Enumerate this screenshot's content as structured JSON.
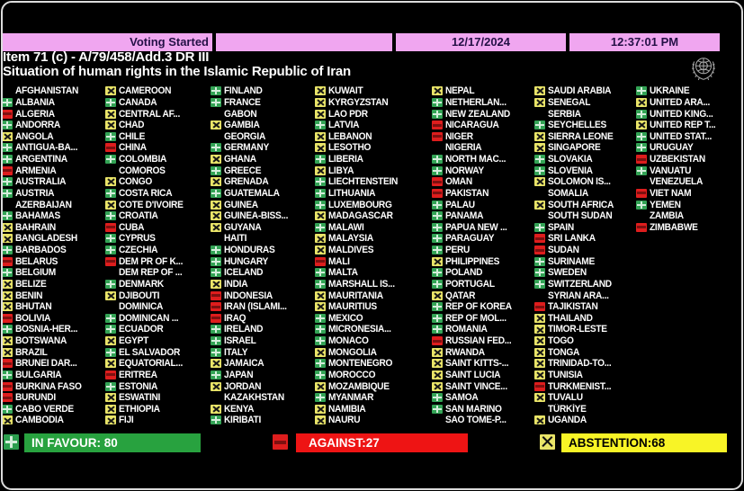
{
  "status_bar": {
    "voting_status": "Voting Started",
    "date": "12/17/2024",
    "time": "12:37:01 PM"
  },
  "header": {
    "item_line": "Item 71 (c) - A/79/458/Add.3 DR III",
    "subject_line": "Situation of human rights in the Islamic Republic of Iran"
  },
  "vote_legend": {
    "plus": "in favour",
    "minus": "against",
    "x": "abstention",
    "blank": "absent"
  },
  "board": {
    "columns": [
      [
        {
          "n": "AFGHANISTAN",
          "v": ""
        },
        {
          "n": "ALBANIA",
          "v": "+"
        },
        {
          "n": "ALGERIA",
          "v": "-"
        },
        {
          "n": "ANDORRA",
          "v": "+"
        },
        {
          "n": "ANGOLA",
          "v": "x"
        },
        {
          "n": "ANTIGUA-BA...",
          "v": "+"
        },
        {
          "n": "ARGENTINA",
          "v": "+"
        },
        {
          "n": "ARMENIA",
          "v": "-"
        },
        {
          "n": "AUSTRALIA",
          "v": "+"
        },
        {
          "n": "AUSTRIA",
          "v": "+"
        },
        {
          "n": "AZERBAIJAN",
          "v": ""
        },
        {
          "n": "BAHAMAS",
          "v": "+"
        },
        {
          "n": "BAHRAIN",
          "v": "x"
        },
        {
          "n": "BANGLADESH",
          "v": "x"
        },
        {
          "n": "BARBADOS",
          "v": "+"
        },
        {
          "n": "BELARUS",
          "v": "-"
        },
        {
          "n": "BELGIUM",
          "v": "+"
        },
        {
          "n": "BELIZE",
          "v": "x"
        },
        {
          "n": "BENIN",
          "v": "x"
        },
        {
          "n": "BHUTAN",
          "v": "x"
        },
        {
          "n": "BOLIVIA",
          "v": "-"
        },
        {
          "n": "BOSNIA-HER...",
          "v": "+"
        },
        {
          "n": "BOTSWANA",
          "v": "x"
        },
        {
          "n": "BRAZIL",
          "v": "x"
        },
        {
          "n": "BRUNEI DAR...",
          "v": "-"
        },
        {
          "n": "BULGARIA",
          "v": "+"
        },
        {
          "n": "BURKINA FASO",
          "v": "-"
        },
        {
          "n": "BURUNDI",
          "v": "-"
        },
        {
          "n": "CABO VERDE",
          "v": "+"
        },
        {
          "n": "CAMBODIA",
          "v": "x"
        }
      ],
      [
        {
          "n": "CAMEROON",
          "v": "x"
        },
        {
          "n": "CANADA",
          "v": "+"
        },
        {
          "n": "CENTRAL AF...",
          "v": "x"
        },
        {
          "n": "CHAD",
          "v": "x"
        },
        {
          "n": "CHILE",
          "v": "+"
        },
        {
          "n": "CHINA",
          "v": "-"
        },
        {
          "n": "COLOMBIA",
          "v": "+"
        },
        {
          "n": "COMOROS",
          "v": ""
        },
        {
          "n": "CONGO",
          "v": "x"
        },
        {
          "n": "COSTA RICA",
          "v": "+"
        },
        {
          "n": "COTE D'IVOIRE",
          "v": "x"
        },
        {
          "n": "CROATIA",
          "v": "+"
        },
        {
          "n": "CUBA",
          "v": "-"
        },
        {
          "n": "CYPRUS",
          "v": "+"
        },
        {
          "n": "CZECHIA",
          "v": "+"
        },
        {
          "n": "DEM PR OF K...",
          "v": "-"
        },
        {
          "n": "DEM REP OF ...",
          "v": ""
        },
        {
          "n": "DENMARK",
          "v": "+"
        },
        {
          "n": "DJIBOUTI",
          "v": "x"
        },
        {
          "n": "DOMINICA",
          "v": ""
        },
        {
          "n": "DOMINICAN ...",
          "v": "+"
        },
        {
          "n": "ECUADOR",
          "v": "+"
        },
        {
          "n": "EGYPT",
          "v": "x"
        },
        {
          "n": "EL SALVADOR",
          "v": "+"
        },
        {
          "n": "EQUATORIAL...",
          "v": "x"
        },
        {
          "n": "ERITREA",
          "v": "-"
        },
        {
          "n": "ESTONIA",
          "v": "+"
        },
        {
          "n": "ESWATINI",
          "v": "x"
        },
        {
          "n": "ETHIOPIA",
          "v": "x"
        },
        {
          "n": "FIJI",
          "v": "x"
        }
      ],
      [
        {
          "n": "FINLAND",
          "v": "+"
        },
        {
          "n": "FRANCE",
          "v": "+"
        },
        {
          "n": "GABON",
          "v": ""
        },
        {
          "n": "GAMBIA",
          "v": "x"
        },
        {
          "n": "GEORGIA",
          "v": ""
        },
        {
          "n": "GERMANY",
          "v": "+"
        },
        {
          "n": "GHANA",
          "v": "x"
        },
        {
          "n": "GREECE",
          "v": "+"
        },
        {
          "n": "GRENADA",
          "v": "x"
        },
        {
          "n": "GUATEMALA",
          "v": "+"
        },
        {
          "n": "GUINEA",
          "v": "x"
        },
        {
          "n": "GUINEA-BISS...",
          "v": "x"
        },
        {
          "n": "GUYANA",
          "v": "x"
        },
        {
          "n": "HAITI",
          "v": ""
        },
        {
          "n": "HONDURAS",
          "v": "+"
        },
        {
          "n": "HUNGARY",
          "v": "+"
        },
        {
          "n": "ICELAND",
          "v": "+"
        },
        {
          "n": "INDIA",
          "v": "x"
        },
        {
          "n": "INDONESIA",
          "v": "-"
        },
        {
          "n": "IRAN (ISLAMI...",
          "v": "-"
        },
        {
          "n": "IRAQ",
          "v": "-"
        },
        {
          "n": "IRELAND",
          "v": "+"
        },
        {
          "n": "ISRAEL",
          "v": "+"
        },
        {
          "n": "ITALY",
          "v": "+"
        },
        {
          "n": "JAMAICA",
          "v": "x"
        },
        {
          "n": "JAPAN",
          "v": "+"
        },
        {
          "n": "JORDAN",
          "v": "x"
        },
        {
          "n": "KAZAKHSTAN",
          "v": ""
        },
        {
          "n": "KENYA",
          "v": "x"
        },
        {
          "n": "KIRIBATI",
          "v": "+"
        }
      ],
      [
        {
          "n": "KUWAIT",
          "v": "x"
        },
        {
          "n": "KYRGYZSTAN",
          "v": "x"
        },
        {
          "n": "LAO PDR",
          "v": "x"
        },
        {
          "n": "LATVIA",
          "v": "+"
        },
        {
          "n": "LEBANON",
          "v": "x"
        },
        {
          "n": "LESOTHO",
          "v": "x"
        },
        {
          "n": "LIBERIA",
          "v": "+"
        },
        {
          "n": "LIBYA",
          "v": "x"
        },
        {
          "n": "LIECHTENSTEIN",
          "v": "+"
        },
        {
          "n": "LITHUANIA",
          "v": "+"
        },
        {
          "n": "LUXEMBOURG",
          "v": "+"
        },
        {
          "n": "MADAGASCAR",
          "v": "x"
        },
        {
          "n": "MALAWI",
          "v": "+"
        },
        {
          "n": "MALAYSIA",
          "v": "x"
        },
        {
          "n": "MALDIVES",
          "v": "x"
        },
        {
          "n": "MALI",
          "v": "-"
        },
        {
          "n": "MALTA",
          "v": "+"
        },
        {
          "n": "MARSHALL IS...",
          "v": "+"
        },
        {
          "n": "MAURITANIA",
          "v": "x"
        },
        {
          "n": "MAURITIUS",
          "v": "x"
        },
        {
          "n": "MEXICO",
          "v": "+"
        },
        {
          "n": "MICRONESIA...",
          "v": "+"
        },
        {
          "n": "MONACO",
          "v": "+"
        },
        {
          "n": "MONGOLIA",
          "v": "x"
        },
        {
          "n": "MONTENEGRO",
          "v": "+"
        },
        {
          "n": "MOROCCO",
          "v": "+"
        },
        {
          "n": "MOZAMBIQUE",
          "v": "x"
        },
        {
          "n": "MYANMAR",
          "v": "+"
        },
        {
          "n": "NAMIBIA",
          "v": "x"
        },
        {
          "n": "NAURU",
          "v": "x"
        }
      ],
      [
        {
          "n": "NEPAL",
          "v": "x"
        },
        {
          "n": "NETHERLAN...",
          "v": "+"
        },
        {
          "n": "NEW ZEALAND",
          "v": "+"
        },
        {
          "n": "NICARAGUA",
          "v": "-"
        },
        {
          "n": "NIGER",
          "v": "-"
        },
        {
          "n": "NIGERIA",
          "v": ""
        },
        {
          "n": "NORTH MAC...",
          "v": "+"
        },
        {
          "n": "NORWAY",
          "v": "+"
        },
        {
          "n": "OMAN",
          "v": "-"
        },
        {
          "n": "PAKISTAN",
          "v": "-"
        },
        {
          "n": "PALAU",
          "v": "+"
        },
        {
          "n": "PANAMA",
          "v": "+"
        },
        {
          "n": "PAPUA NEW ...",
          "v": "+"
        },
        {
          "n": "PARAGUAY",
          "v": "+"
        },
        {
          "n": "PERU",
          "v": "+"
        },
        {
          "n": "PHILIPPINES",
          "v": "x"
        },
        {
          "n": "POLAND",
          "v": "+"
        },
        {
          "n": "PORTUGAL",
          "v": "+"
        },
        {
          "n": "QATAR",
          "v": "x"
        },
        {
          "n": "REP OF KOREA",
          "v": "+"
        },
        {
          "n": "REP OF MOL...",
          "v": "+"
        },
        {
          "n": "ROMANIA",
          "v": "+"
        },
        {
          "n": "RUSSIAN FED...",
          "v": "-"
        },
        {
          "n": "RWANDA",
          "v": "x"
        },
        {
          "n": "SAINT KITTS-...",
          "v": "x"
        },
        {
          "n": "SAINT LUCIA",
          "v": "x"
        },
        {
          "n": "SAINT VINCE...",
          "v": "x"
        },
        {
          "n": "SAMOA",
          "v": "+"
        },
        {
          "n": "SAN MARINO",
          "v": "+"
        },
        {
          "n": "SAO TOME-P...",
          "v": ""
        }
      ],
      [
        {
          "n": "SAUDI ARABIA",
          "v": "x"
        },
        {
          "n": "SENEGAL",
          "v": "x"
        },
        {
          "n": "SERBIA",
          "v": ""
        },
        {
          "n": "SEYCHELLES",
          "v": "+"
        },
        {
          "n": "SIERRA LEONE",
          "v": "x"
        },
        {
          "n": "SINGAPORE",
          "v": "x"
        },
        {
          "n": "SLOVAKIA",
          "v": "+"
        },
        {
          "n": "SLOVENIA",
          "v": "+"
        },
        {
          "n": "SOLOMON IS...",
          "v": "x"
        },
        {
          "n": "SOMALIA",
          "v": ""
        },
        {
          "n": "SOUTH AFRICA",
          "v": "x"
        },
        {
          "n": "SOUTH SUDAN",
          "v": ""
        },
        {
          "n": "SPAIN",
          "v": "+"
        },
        {
          "n": "SRI LANKA",
          "v": "-"
        },
        {
          "n": "SUDAN",
          "v": "-"
        },
        {
          "n": "SURINAME",
          "v": "+"
        },
        {
          "n": "SWEDEN",
          "v": "+"
        },
        {
          "n": "SWITZERLAND",
          "v": "+"
        },
        {
          "n": "SYRIAN ARA...",
          "v": ""
        },
        {
          "n": "TAJIKISTAN",
          "v": "-"
        },
        {
          "n": "THAILAND",
          "v": "x"
        },
        {
          "n": "TIMOR-LESTE",
          "v": "x"
        },
        {
          "n": "TOGO",
          "v": "x"
        },
        {
          "n": "TONGA",
          "v": "x"
        },
        {
          "n": "TRINIDAD-TO...",
          "v": "x"
        },
        {
          "n": "TUNISIA",
          "v": "x"
        },
        {
          "n": "TURKMENIST...",
          "v": "-"
        },
        {
          "n": "TUVALU",
          "v": "x"
        },
        {
          "n": "TÜRKİYE",
          "v": ""
        },
        {
          "n": "UGANDA",
          "v": "x"
        }
      ],
      [
        {
          "n": "UKRAINE",
          "v": "+"
        },
        {
          "n": "UNITED ARA...",
          "v": "x"
        },
        {
          "n": "UNITED KING...",
          "v": "+"
        },
        {
          "n": "UNITED REP T...",
          "v": "x"
        },
        {
          "n": "UNITED STAT...",
          "v": "+"
        },
        {
          "n": "URUGUAY",
          "v": "+"
        },
        {
          "n": "UZBEKISTAN",
          "v": "-"
        },
        {
          "n": "VANUATU",
          "v": "+"
        },
        {
          "n": "VENEZUELA",
          "v": ""
        },
        {
          "n": "VIET NAM",
          "v": "-"
        },
        {
          "n": "YEMEN",
          "v": "+"
        },
        {
          "n": "ZAMBIA",
          "v": ""
        },
        {
          "n": "ZIMBABWE",
          "v": "-"
        }
      ]
    ]
  },
  "summary": {
    "in_favour_label": "IN FAVOUR: 80",
    "against_label": "AGAINST:27",
    "abstention_label": "ABSTENTION:68",
    "in_favour_count": 80,
    "against_count": 27,
    "abstention_count": 68
  },
  "colors": {
    "in_favour": "#28a23f",
    "against": "#ee1414",
    "abstention": "#f8f426",
    "status_bar": "#f0a6f0",
    "background": "#000000",
    "text": "#ffffff"
  }
}
